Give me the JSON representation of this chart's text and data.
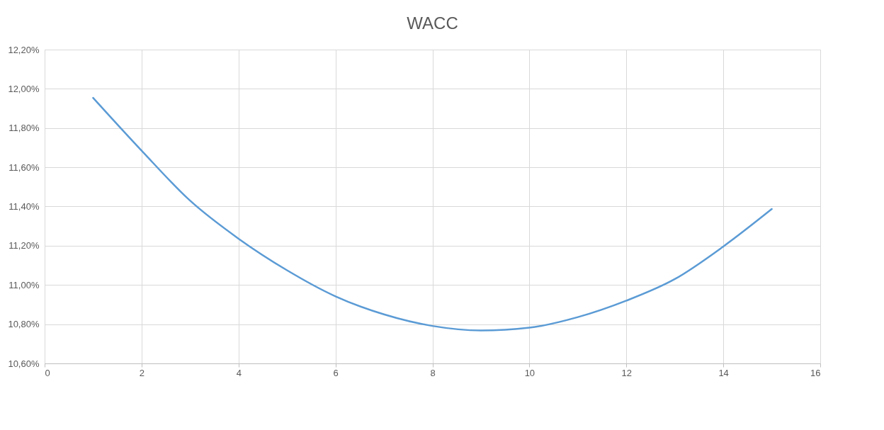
{
  "chart_data": {
    "type": "line",
    "title": "WACC",
    "x": [
      1,
      2,
      3,
      4,
      5,
      6,
      7,
      8,
      9,
      10,
      11,
      12,
      13,
      14,
      15
    ],
    "series": [
      {
        "color": "#5b9bd5",
        "values": [
          11.954,
          11.685,
          11.43,
          11.236,
          11.075,
          10.942,
          10.85,
          10.791,
          10.768,
          10.782,
          10.836,
          10.92,
          11.03,
          11.196,
          11.387
        ]
      }
    ],
    "xlim": [
      0,
      16
    ],
    "xticks": [
      0,
      2,
      4,
      6,
      8,
      10,
      12,
      14,
      16
    ],
    "ylim": [
      10.6,
      12.2
    ],
    "yticks": [
      {
        "value": 10.6,
        "label": "10,60%"
      },
      {
        "value": 10.8,
        "label": "10,80%"
      },
      {
        "value": 11.0,
        "label": "11,00%"
      },
      {
        "value": 11.2,
        "label": "11,20%"
      },
      {
        "value": 11.4,
        "label": "11,40%"
      },
      {
        "value": 11.6,
        "label": "11,60%"
      },
      {
        "value": 11.8,
        "label": "11,80%"
      },
      {
        "value": 12.0,
        "label": "12,00%"
      },
      {
        "value": 12.2,
        "label": "12,20%"
      }
    ],
    "grid": true,
    "legend": false,
    "marker": "none",
    "line_style": "solid"
  }
}
